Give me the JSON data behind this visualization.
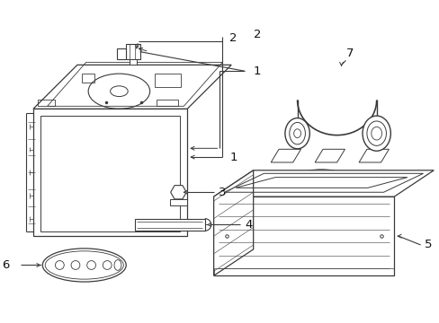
{
  "bg_color": "#ffffff",
  "line_color": "#3a3a3a",
  "lw": 0.9,
  "fig_width": 4.89,
  "fig_height": 3.6,
  "dpi": 100
}
